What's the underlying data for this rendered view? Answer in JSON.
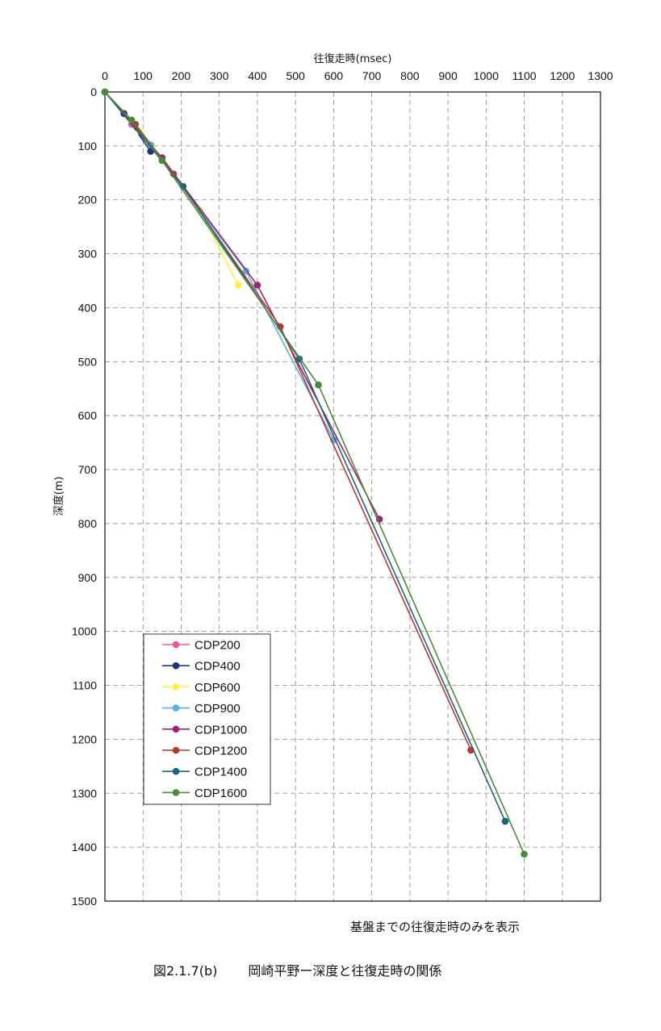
{
  "chart_data": {
    "type": "line",
    "title": "",
    "xlabel": "往復走時(msec)",
    "ylabel": "深度(m)",
    "xlim": [
      0,
      1300
    ],
    "ylim": [
      0,
      1500
    ],
    "y_inverted": true,
    "x_axis_position": "top",
    "x_ticks": [
      0,
      100,
      200,
      300,
      400,
      500,
      600,
      700,
      800,
      900,
      1000,
      1100,
      1200,
      1300
    ],
    "y_ticks": [
      0,
      100,
      200,
      300,
      400,
      500,
      600,
      700,
      800,
      900,
      1000,
      1100,
      1200,
      1300,
      1400,
      1500
    ],
    "grid": "dashed",
    "legend_position": "bottom-left",
    "series": [
      {
        "name": "CDP200",
        "color": "#e8569c",
        "points": [
          [
            0,
            0
          ],
          [
            50,
            40
          ],
          [
            70,
            60
          ]
        ]
      },
      {
        "name": "CDP400",
        "color": "#24307a",
        "points": [
          [
            0,
            0
          ],
          [
            50,
            40
          ],
          [
            120,
            110
          ]
        ]
      },
      {
        "name": "CDP600",
        "color": "#f5f53a",
        "points": [
          [
            0,
            0
          ],
          [
            90,
            72
          ],
          [
            250,
            220
          ],
          [
            350,
            358
          ]
        ]
      },
      {
        "name": "CDP900",
        "color": "#5aaee0",
        "points": [
          [
            0,
            0
          ],
          [
            120,
            98
          ],
          [
            370,
            332
          ],
          [
            600,
            645
          ]
        ]
      },
      {
        "name": "CDP1000",
        "color": "#9b2570",
        "points": [
          [
            0,
            0
          ],
          [
            150,
            122
          ],
          [
            400,
            358
          ],
          [
            720,
            792
          ]
        ]
      },
      {
        "name": "CDP1200",
        "color": "#b23a32",
        "points": [
          [
            0,
            0
          ],
          [
            80,
            60
          ],
          [
            180,
            152
          ],
          [
            460,
            435
          ],
          [
            960,
            1220
          ]
        ]
      },
      {
        "name": "CDP1400",
        "color": "#1f6479",
        "points": [
          [
            0,
            0
          ],
          [
            205,
            175
          ],
          [
            510,
            495
          ],
          [
            1050,
            1352
          ]
        ]
      },
      {
        "name": "CDP1600",
        "color": "#4a8a3a",
        "points": [
          [
            0,
            0
          ],
          [
            70,
            52
          ],
          [
            150,
            127
          ],
          [
            560,
            543
          ],
          [
            1100,
            1413
          ]
        ]
      }
    ]
  },
  "note": "基盤までの往復走時のみを表示",
  "caption": {
    "label": "図2.1.7(b)",
    "text": "岡崎平野ー深度と往復走時の関係"
  }
}
